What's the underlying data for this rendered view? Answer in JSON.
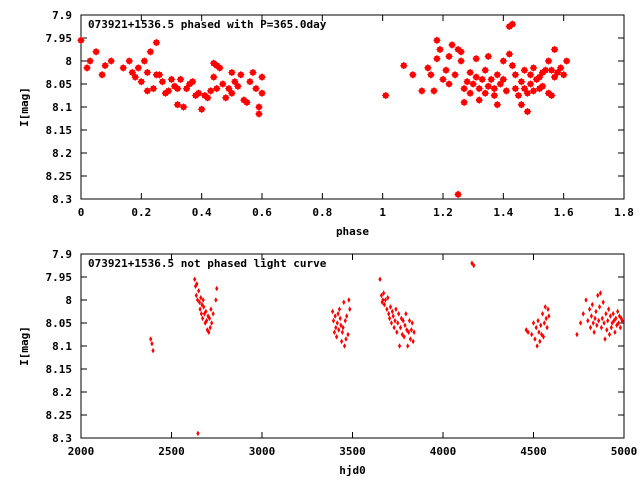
{
  "chart_data": [
    {
      "type": "scatter",
      "title": "073921+1536.5 phased with P=365.0day",
      "xlabel": "phase",
      "ylabel": "I[mag]",
      "xlim": [
        0,
        1.8
      ],
      "ylim": [
        8.3,
        7.9
      ],
      "y_inverted": true,
      "grid": false,
      "x_ticks": [
        "0",
        "0.2",
        "0.4",
        "0.6",
        "0.8",
        "1",
        "1.2",
        "1.4",
        "1.6",
        "1.8"
      ],
      "y_ticks": [
        "7.9",
        "7.95",
        "8",
        "8.05",
        "8.1",
        "8.15",
        "8.2",
        "8.25",
        "8.3"
      ],
      "marker": "star",
      "color": "#ff0000",
      "points": [
        [
          0.0,
          7.955
        ],
        [
          0.02,
          8.015
        ],
        [
          0.03,
          8.0
        ],
        [
          0.05,
          7.98
        ],
        [
          0.07,
          8.03
        ],
        [
          0.08,
          8.01
        ],
        [
          0.1,
          8.0
        ],
        [
          0.14,
          8.015
        ],
        [
          0.16,
          8.0
        ],
        [
          0.17,
          8.025
        ],
        [
          0.18,
          8.035
        ],
        [
          0.19,
          8.015
        ],
        [
          0.2,
          8.045
        ],
        [
          0.21,
          8.0
        ],
        [
          0.22,
          8.025
        ],
        [
          0.22,
          8.065
        ],
        [
          0.23,
          7.98
        ],
        [
          0.24,
          8.06
        ],
        [
          0.25,
          7.96
        ],
        [
          0.25,
          8.03
        ],
        [
          0.26,
          8.03
        ],
        [
          0.27,
          8.045
        ],
        [
          0.28,
          8.07
        ],
        [
          0.29,
          8.065
        ],
        [
          0.3,
          8.04
        ],
        [
          0.31,
          8.055
        ],
        [
          0.32,
          8.06
        ],
        [
          0.32,
          8.095
        ],
        [
          0.33,
          8.04
        ],
        [
          0.34,
          8.1
        ],
        [
          0.35,
          8.06
        ],
        [
          0.36,
          8.05
        ],
        [
          0.37,
          8.045
        ],
        [
          0.38,
          8.075
        ],
        [
          0.39,
          8.07
        ],
        [
          0.4,
          8.105
        ],
        [
          0.41,
          8.075
        ],
        [
          0.42,
          8.08
        ],
        [
          0.43,
          8.065
        ],
        [
          0.44,
          8.035
        ],
        [
          0.44,
          8.005
        ],
        [
          0.45,
          8.01
        ],
        [
          0.45,
          8.06
        ],
        [
          0.46,
          8.015
        ],
        [
          0.47,
          8.05
        ],
        [
          0.48,
          8.08
        ],
        [
          0.49,
          8.06
        ],
        [
          0.5,
          8.025
        ],
        [
          0.5,
          8.07
        ],
        [
          0.51,
          8.045
        ],
        [
          0.52,
          8.055
        ],
        [
          0.53,
          8.03
        ],
        [
          0.54,
          8.085
        ],
        [
          0.55,
          8.09
        ],
        [
          0.56,
          8.045
        ],
        [
          0.57,
          8.025
        ],
        [
          0.58,
          8.06
        ],
        [
          0.59,
          8.1
        ],
        [
          0.59,
          8.115
        ],
        [
          0.6,
          8.07
        ],
        [
          0.6,
          8.035
        ],
        [
          1.01,
          8.075
        ],
        [
          1.07,
          8.01
        ],
        [
          1.1,
          8.03
        ],
        [
          1.13,
          8.065
        ],
        [
          1.15,
          8.015
        ],
        [
          1.16,
          8.03
        ],
        [
          1.17,
          8.065
        ],
        [
          1.18,
          7.995
        ],
        [
          1.18,
          7.955
        ],
        [
          1.19,
          7.975
        ],
        [
          1.2,
          8.04
        ],
        [
          1.21,
          8.02
        ],
        [
          1.22,
          7.99
        ],
        [
          1.22,
          8.05
        ],
        [
          1.23,
          7.965
        ],
        [
          1.24,
          8.03
        ],
        [
          1.25,
          7.975
        ],
        [
          1.25,
          8.29
        ],
        [
          1.26,
          8.0
        ],
        [
          1.26,
          7.98
        ],
        [
          1.27,
          8.06
        ],
        [
          1.27,
          8.09
        ],
        [
          1.28,
          8.045
        ],
        [
          1.29,
          8.07
        ],
        [
          1.29,
          8.025
        ],
        [
          1.3,
          8.05
        ],
        [
          1.31,
          7.995
        ],
        [
          1.31,
          8.035
        ],
        [
          1.32,
          8.06
        ],
        [
          1.32,
          8.085
        ],
        [
          1.33,
          8.04
        ],
        [
          1.34,
          8.02
        ],
        [
          1.34,
          8.07
        ],
        [
          1.35,
          7.99
        ],
        [
          1.35,
          8.055
        ],
        [
          1.36,
          8.04
        ],
        [
          1.37,
          8.075
        ],
        [
          1.37,
          8.06
        ],
        [
          1.38,
          8.03
        ],
        [
          1.38,
          8.095
        ],
        [
          1.39,
          8.05
        ],
        [
          1.4,
          8.0
        ],
        [
          1.4,
          8.04
        ],
        [
          1.41,
          8.065
        ],
        [
          1.42,
          7.985
        ],
        [
          1.42,
          7.925
        ],
        [
          1.43,
          8.01
        ],
        [
          1.43,
          7.92
        ],
        [
          1.44,
          8.03
        ],
        [
          1.44,
          8.06
        ],
        [
          1.45,
          8.075
        ],
        [
          1.46,
          8.045
        ],
        [
          1.46,
          8.095
        ],
        [
          1.47,
          8.02
        ],
        [
          1.47,
          8.06
        ],
        [
          1.48,
          8.07
        ],
        [
          1.48,
          8.11
        ],
        [
          1.49,
          8.03
        ],
        [
          1.49,
          8.05
        ],
        [
          1.5,
          8.015
        ],
        [
          1.5,
          8.065
        ],
        [
          1.51,
          8.04
        ],
        [
          1.52,
          8.06
        ],
        [
          1.52,
          8.035
        ],
        [
          1.53,
          8.025
        ],
        [
          1.53,
          8.055
        ],
        [
          1.54,
          8.02
        ],
        [
          1.55,
          8.07
        ],
        [
          1.55,
          8.0
        ],
        [
          1.56,
          8.075
        ],
        [
          1.56,
          8.02
        ],
        [
          1.57,
          7.975
        ],
        [
          1.57,
          8.035
        ],
        [
          1.58,
          8.025
        ],
        [
          1.59,
          8.015
        ],
        [
          1.6,
          8.03
        ],
        [
          1.61,
          8.0
        ]
      ]
    },
    {
      "type": "scatter",
      "title": "073921+1536.5 not phased light curve",
      "xlabel": "hjd0",
      "ylabel": "I[mag]",
      "xlim": [
        2000,
        5000
      ],
      "ylim": [
        8.3,
        7.9
      ],
      "y_inverted": true,
      "grid": false,
      "x_ticks": [
        "2000",
        "2500",
        "3000",
        "3500",
        "4000",
        "4500",
        "5000"
      ],
      "y_ticks": [
        "7.9",
        "7.95",
        "8",
        "8.05",
        "8.1",
        "8.15",
        "8.2",
        "8.25",
        "8.3"
      ],
      "marker": "diamond",
      "color": "#ff0000",
      "points": [
        [
          2385,
          8.085
        ],
        [
          2392,
          8.095
        ],
        [
          2398,
          8.11
        ],
        [
          2628,
          7.955
        ],
        [
          2633,
          7.97
        ],
        [
          2637,
          7.99
        ],
        [
          2640,
          7.965
        ],
        [
          2644,
          8.0
        ],
        [
          2646,
          8.29
        ],
        [
          2650,
          7.98
        ],
        [
          2655,
          8.005
        ],
        [
          2658,
          8.02
        ],
        [
          2662,
          7.995
        ],
        [
          2665,
          8.03
        ],
        [
          2668,
          8.01
        ],
        [
          2672,
          8.04
        ],
        [
          2675,
          8.0
        ],
        [
          2678,
          8.015
        ],
        [
          2682,
          8.03
        ],
        [
          2686,
          8.05
        ],
        [
          2690,
          8.025
        ],
        [
          2694,
          8.045
        ],
        [
          2698,
          8.065
        ],
        [
          2702,
          8.035
        ],
        [
          2706,
          8.07
        ],
        [
          2710,
          8.04
        ],
        [
          2714,
          8.06
        ],
        [
          2718,
          8.02
        ],
        [
          2722,
          8.05
        ],
        [
          2730,
          8.03
        ],
        [
          2745,
          8.0
        ],
        [
          2750,
          7.975
        ],
        [
          3390,
          8.025
        ],
        [
          3395,
          8.045
        ],
        [
          3400,
          8.07
        ],
        [
          3404,
          8.035
        ],
        [
          3408,
          8.06
        ],
        [
          3412,
          8.08
        ],
        [
          3416,
          8.05
        ],
        [
          3420,
          8.03
        ],
        [
          3424,
          8.065
        ],
        [
          3428,
          8.02
        ],
        [
          3432,
          8.04
        ],
        [
          3436,
          8.055
        ],
        [
          3440,
          8.09
        ],
        [
          3444,
          8.07
        ],
        [
          3448,
          8.06
        ],
        [
          3452,
          8.005
        ],
        [
          3456,
          8.1
        ],
        [
          3460,
          8.045
        ],
        [
          3464,
          8.085
        ],
        [
          3468,
          8.035
        ],
        [
          3475,
          8.075
        ],
        [
          3480,
          8.0
        ],
        [
          3485,
          8.02
        ],
        [
          3652,
          7.955
        ],
        [
          3660,
          7.99
        ],
        [
          3664,
          8.005
        ],
        [
          3668,
          8.0
        ],
        [
          3672,
          7.985
        ],
        [
          3676,
          8.01
        ],
        [
          3682,
          8.0
        ],
        [
          3690,
          8.02
        ],
        [
          3695,
          7.995
        ],
        [
          3700,
          8.03
        ],
        [
          3705,
          8.04
        ],
        [
          3710,
          8.015
        ],
        [
          3715,
          8.05
        ],
        [
          3720,
          8.025
        ],
        [
          3725,
          8.035
        ],
        [
          3730,
          8.06
        ],
        [
          3735,
          8.045
        ],
        [
          3740,
          8.02
        ],
        [
          3745,
          8.07
        ],
        [
          3750,
          8.05
        ],
        [
          3755,
          8.03
        ],
        [
          3760,
          8.1
        ],
        [
          3765,
          8.06
        ],
        [
          3770,
          8.04
        ],
        [
          3775,
          8.075
        ],
        [
          3780,
          8.045
        ],
        [
          3785,
          8.08
        ],
        [
          3790,
          8.055
        ],
        [
          3795,
          8.03
        ],
        [
          3800,
          8.065
        ],
        [
          3805,
          8.1
        ],
        [
          3810,
          8.07
        ],
        [
          3815,
          8.045
        ],
        [
          3820,
          8.085
        ],
        [
          3825,
          8.065
        ],
        [
          3830,
          8.05
        ],
        [
          3835,
          8.09
        ],
        [
          3840,
          8.07
        ],
        [
          4160,
          7.92
        ],
        [
          4170,
          7.925
        ],
        [
          4460,
          8.065
        ],
        [
          4470,
          8.07
        ],
        [
          4490,
          8.075
        ],
        [
          4500,
          8.05
        ],
        [
          4508,
          8.085
        ],
        [
          4515,
          8.06
        ],
        [
          4520,
          8.1
        ],
        [
          4525,
          8.045
        ],
        [
          4530,
          8.07
        ],
        [
          4535,
          8.09
        ],
        [
          4540,
          8.055
        ],
        [
          4545,
          8.075
        ],
        [
          4550,
          8.03
        ],
        [
          4555,
          8.08
        ],
        [
          4560,
          8.05
        ],
        [
          4565,
          8.015
        ],
        [
          4570,
          8.04
        ],
        [
          4575,
          8.06
        ],
        [
          4580,
          8.02
        ],
        [
          4585,
          8.035
        ],
        [
          4740,
          8.075
        ],
        [
          4760,
          8.05
        ],
        [
          4775,
          8.03
        ],
        [
          4790,
          8.0
        ],
        [
          4800,
          8.045
        ],
        [
          4810,
          8.02
        ],
        [
          4815,
          8.06
        ],
        [
          4820,
          8.035
        ],
        [
          4825,
          8.01
        ],
        [
          4830,
          8.05
        ],
        [
          4835,
          8.07
        ],
        [
          4840,
          8.04
        ],
        [
          4845,
          8.025
        ],
        [
          4850,
          8.055
        ],
        [
          4855,
          7.99
        ],
        [
          4860,
          8.045
        ],
        [
          4865,
          8.015
        ],
        [
          4870,
          7.985
        ],
        [
          4875,
          8.06
        ],
        [
          4880,
          8.04
        ],
        [
          4885,
          8.005
        ],
        [
          4890,
          8.05
        ],
        [
          4895,
          8.085
        ],
        [
          4900,
          8.03
        ],
        [
          4905,
          8.065
        ],
        [
          4910,
          8.045
        ],
        [
          4915,
          8.02
        ],
        [
          4920,
          8.075
        ],
        [
          4925,
          8.035
        ],
        [
          4930,
          8.06
        ],
        [
          4935,
          8.05
        ],
        [
          4940,
          8.03
        ],
        [
          4945,
          8.045
        ],
        [
          4950,
          8.07
        ],
        [
          4955,
          8.04
        ],
        [
          4960,
          8.055
        ],
        [
          4965,
          8.025
        ],
        [
          4970,
          8.05
        ],
        [
          4975,
          8.035
        ],
        [
          4980,
          8.06
        ],
        [
          4985,
          8.04
        ],
        [
          4990,
          8.045
        ]
      ]
    }
  ]
}
